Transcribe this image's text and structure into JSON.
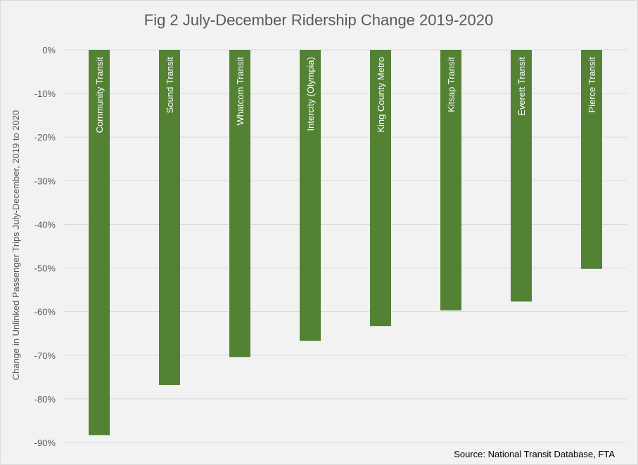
{
  "chart_data": {
    "type": "bar",
    "title": "Fig 2 July-December Ridership Change 2019-2020",
    "ylabel": "Change in Unlinked Passenger Trips July-December, 2019 to 2020",
    "xlabel": "",
    "categories": [
      "Community Transit",
      "Sound Transit",
      "Whatcom Transit",
      "Intercity (Olympia)",
      "King County Metro",
      "Kitsap Transit",
      "Everett Transit",
      "Pierce Transit"
    ],
    "values": [
      -88.3,
      -76.8,
      -70.4,
      -66.7,
      -63.3,
      -59.7,
      -57.7,
      -50.2
    ],
    "ylim": [
      -90,
      0
    ],
    "yticks": [
      0,
      -10,
      -20,
      -30,
      -40,
      -50,
      -60,
      -70,
      -80,
      -90
    ],
    "ytick_labels": [
      "0%",
      "-10%",
      "-20%",
      "-30%",
      "-40%",
      "-50%",
      "-60%",
      "-70%",
      "-80%",
      "-90%"
    ],
    "grid": true,
    "bar_color": "#548235",
    "source": "Source: National Transit Database, FTA"
  }
}
